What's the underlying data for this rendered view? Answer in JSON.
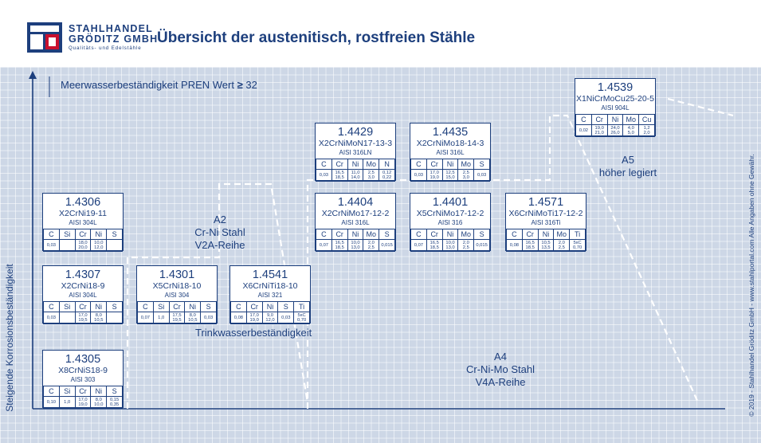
{
  "header": {
    "logo_line1": "STAHLHANDEL",
    "logo_line2": "GRÖDITZ GMBH",
    "logo_tagline": "Qualitäts- und Edelstähle",
    "title": "Übersicht der austenitisch, rostfreien Stähle"
  },
  "labels": {
    "y_axis": "Steigende Korrosionsbeständigkeit",
    "copyright": "© 2019 - Stahlhandel Gröditz GmbH - www.stahlportal.com    Alle Angaben ohne Gewähr.",
    "pren": "Meerwasserbeständigkeit PREN Wert",
    "pren_symbol": "≥",
    "pren_value": "32",
    "drinking_water": "Trinkwasserbeständigkeit",
    "a2_code": "A2",
    "a2_type": "Cr-Ni Stahl",
    "a2_series": "V2A-Reihe",
    "a4_code": "A4",
    "a4_type": "Cr-Ni-Mo Stahl",
    "a4_series": "V4A-Reihe",
    "a5_code": "A5",
    "a5_type": "höher legiert"
  },
  "colors": {
    "primary": "#1d3f7d",
    "accent": "#c8102e",
    "background": "#cdd7e6"
  },
  "cards": [
    {
      "num": "1.4306",
      "desig": "X2CrNi19-11",
      "aisi": "AISI 304L",
      "el": [
        "C",
        "Si",
        "Cr",
        "Ni",
        "S"
      ],
      "hi": [
        "0,03",
        "",
        "18,0",
        "10,0",
        ""
      ],
      "lo": [
        "",
        "",
        "20,0",
        "12,0",
        ""
      ]
    },
    {
      "num": "1.4307",
      "desig": "X2CrNi18-9",
      "aisi": "AISI 304L",
      "el": [
        "C",
        "Si",
        "Cr",
        "Ni",
        "S"
      ],
      "hi": [
        "0,03",
        "",
        "17,0",
        "8,0",
        ""
      ],
      "lo": [
        "",
        "",
        "19,5",
        "10,5",
        ""
      ]
    },
    {
      "num": "1.4305",
      "desig": "X8CrNiS18-9",
      "aisi": "AISI 303",
      "el": [
        "C",
        "Si",
        "Cr",
        "Ni",
        "S"
      ],
      "hi": [
        "0,10",
        "1,0",
        "17,0",
        "8,0",
        "0,15"
      ],
      "lo": [
        "",
        "",
        "19,0",
        "10,0",
        "0,35"
      ]
    },
    {
      "num": "1.4301",
      "desig": "X5CrNi18-10",
      "aisi": "AISI 304",
      "el": [
        "C",
        "Si",
        "Cr",
        "Ni",
        "S"
      ],
      "hi": [
        "0,07",
        "1,0",
        "17,5",
        "8,0",
        "0,03"
      ],
      "lo": [
        "",
        "",
        "19,5",
        "10,5",
        ""
      ]
    },
    {
      "num": "1.4541",
      "desig": "X6CrNiTi18-10",
      "aisi": "AISI 321",
      "el": [
        "C",
        "Cr",
        "Ni",
        "S",
        "Ti"
      ],
      "hi": [
        "0,08",
        "17,0",
        "9,0",
        "0,03",
        "5xC"
      ],
      "lo": [
        "",
        "19,0",
        "12,0",
        "",
        "0,70"
      ]
    },
    {
      "num": "1.4429",
      "desig": "X2CrNiMoN17-13-3",
      "aisi": "AISI 316LN",
      "el": [
        "C",
        "Cr",
        "Ni",
        "Mo",
        "N"
      ],
      "hi": [
        "0,03",
        "16,5",
        "11,0",
        "2,5",
        "0,12"
      ],
      "lo": [
        "",
        "18,5",
        "14,0",
        "3,0",
        "0,22"
      ]
    },
    {
      "num": "1.4404",
      "desig": "X2CrNiMo17-12-2",
      "aisi": "AISI 316L",
      "el": [
        "C",
        "Cr",
        "Ni",
        "Mo",
        "S"
      ],
      "hi": [
        "0,07",
        "16,5",
        "10,0",
        "2,0",
        "0,015"
      ],
      "lo": [
        "",
        "18,5",
        "13,0",
        "2,5",
        ""
      ]
    },
    {
      "num": "1.4435",
      "desig": "X2CrNiMo18-14-3",
      "aisi": "AISI 316L",
      "el": [
        "C",
        "Cr",
        "Ni",
        "Mo",
        "S"
      ],
      "hi": [
        "0,03",
        "17,0",
        "12,5",
        "2,5",
        "0,03"
      ],
      "lo": [
        "",
        "19,0",
        "15,0",
        "3,0",
        ""
      ]
    },
    {
      "num": "1.4401",
      "desig": "X5CrNiMo17-12-2",
      "aisi": "AISI 316",
      "el": [
        "C",
        "Cr",
        "Ni",
        "Mo",
        "S"
      ],
      "hi": [
        "0,07",
        "16,5",
        "10,0",
        "2,0",
        "0,015"
      ],
      "lo": [
        "",
        "18,5",
        "13,0",
        "2,5",
        ""
      ]
    },
    {
      "num": "1.4571",
      "desig": "X6CrNiMoTi17-12-2",
      "aisi": "AISI 316Ti",
      "el": [
        "C",
        "Cr",
        "Ni",
        "Mo",
        "Ti"
      ],
      "hi": [
        "0,08",
        "16,5",
        "10,5",
        "2,0",
        "5xC"
      ],
      "lo": [
        "",
        "18,5",
        "13,5",
        "2,5",
        "0,70"
      ]
    },
    {
      "num": "1.4539",
      "desig": "X1NiCrMoCu25-20-5",
      "aisi": "AISI 904L",
      "el": [
        "C",
        "Cr",
        "Ni",
        "Mo",
        "Cu"
      ],
      "hi": [
        "0,02",
        "19,0",
        "24,0",
        "4,0",
        "1,2"
      ],
      "lo": [
        "",
        "21,0",
        "26,0",
        "5,0",
        "2,0"
      ]
    }
  ]
}
